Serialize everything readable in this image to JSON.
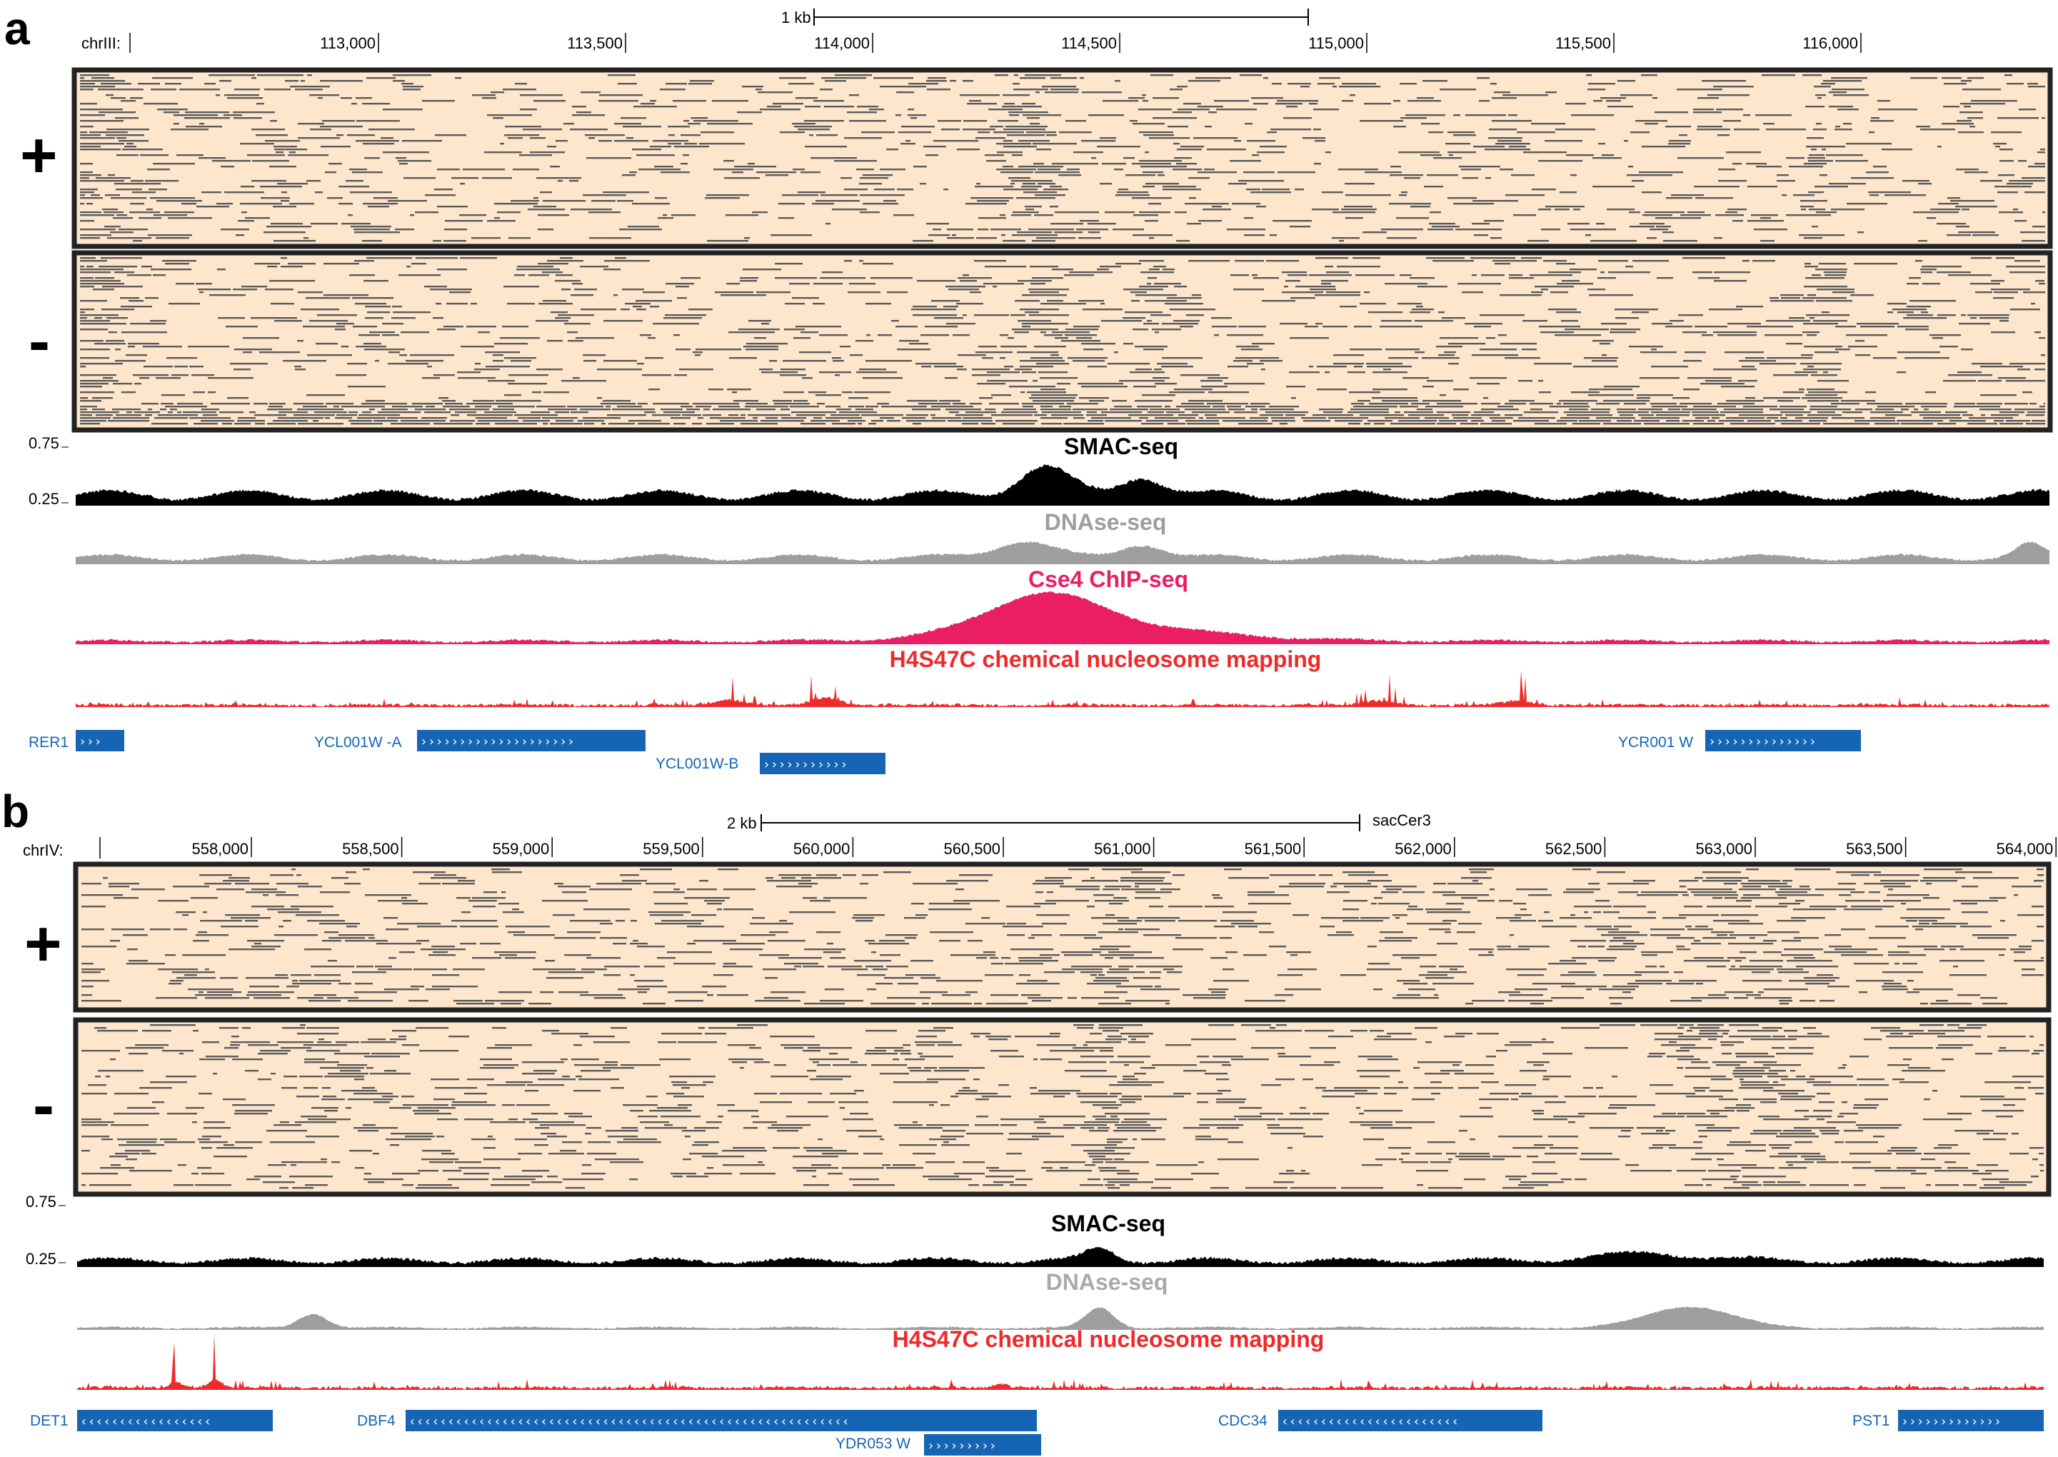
{
  "colors": {
    "heat_bg": "#fde6cc",
    "mark": "#5a5a5a",
    "frame": "#222222",
    "smac": "#000000",
    "dnase": "#9e9e9e",
    "cse4": "#e91e63",
    "h4s47c": "#ee2a2a",
    "gene": "#1565b4"
  },
  "panel_a": {
    "letter": "a",
    "scale_label": "1 kb",
    "chrom": "chrIII:",
    "ticks": [
      "113,000",
      "113,500",
      "114,000",
      "114,500",
      "115,000",
      "115,500",
      "116,000"
    ],
    "strand_plus": "+",
    "strand_minus": "-",
    "y_top": "0.75",
    "y_mid": "0.25",
    "tracks": {
      "smac": "SMAC-seq",
      "dnase": "DNAse-seq",
      "cse4": "Cse4 ChIP-seq",
      "h4s47c": "H4S47C chemical nucleosome mapping"
    },
    "genes": [
      {
        "name": "RER1",
        "arrows": "›››"
      },
      {
        "name": "YCL001W -A",
        "arrows": "››››››››››››››››››››"
      },
      {
        "name": "YCL001W-B",
        "arrows": "›››››››››››"
      },
      {
        "name": "YCR001 W",
        "arrows": "››››››››››››››"
      }
    ]
  },
  "panel_b": {
    "letter": "b",
    "scale_label": "2 kb",
    "assembly": "sacCer3",
    "chrom": "chrIV:",
    "ticks": [
      "558,000",
      "558,500",
      "559,000",
      "559,500",
      "560,000",
      "560,500",
      "561,000",
      "561,500",
      "562,000",
      "562,500",
      "563,000",
      "563,500",
      "564,000"
    ],
    "strand_plus": "+",
    "strand_minus": "-",
    "y_top": "0.75",
    "y_mid": "0.25",
    "tracks": {
      "smac": "SMAC-seq",
      "dnase": "DNAse-seq",
      "h4s47c": "H4S47C chemical nucleosome mapping"
    },
    "genes": [
      {
        "name": "DET1",
        "arrows": "‹‹‹‹‹‹‹‹‹‹‹‹‹‹‹‹‹"
      },
      {
        "name": "DBF4",
        "arrows": "‹‹‹‹‹‹‹‹‹‹‹‹‹‹‹‹‹‹‹‹‹‹‹‹‹‹‹‹‹‹‹‹‹‹‹‹‹‹‹‹‹‹‹‹‹‹‹‹‹‹‹‹‹‹‹‹‹"
      },
      {
        "name": "YDR053 W",
        "arrows": "›››››››››"
      },
      {
        "name": "CDC34",
        "arrows": "‹‹‹‹‹‹‹‹‹‹‹‹‹‹‹‹‹‹‹‹‹‹‹"
      },
      {
        "name": "PST1",
        "arrows": "›››››››››››››"
      }
    ]
  }
}
